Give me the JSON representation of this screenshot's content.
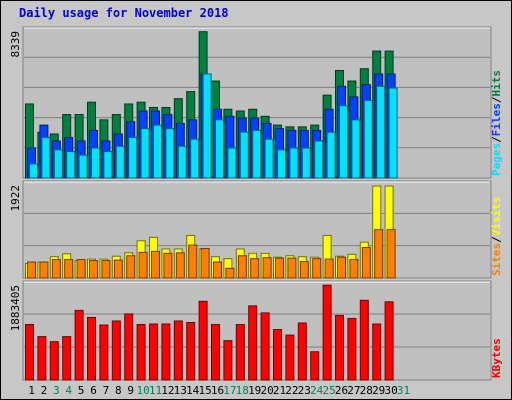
{
  "title": "Daily usage for November 2018",
  "colors": {
    "hits": "#008040",
    "files": "#0040ff",
    "pages": "#00e0ff",
    "visits": "#ffff00",
    "sites": "#ff8000",
    "kbytes": "#ff0000",
    "weekday_label": "#000000",
    "weekend_label": "#00805c",
    "panel_bg": "#c0c0c0",
    "frame_bg": "#c7c7c7"
  },
  "chart_data": [
    {
      "type": "bar",
      "panel": "top",
      "y_axis_label": "8339",
      "ylim": [
        0,
        8339
      ],
      "legend_right": [
        "Pages",
        "/",
        "Files",
        "/",
        "Hits"
      ],
      "categories": [
        "1",
        "2",
        "3",
        "4",
        "5",
        "6",
        "7",
        "8",
        "9",
        "10",
        "11",
        "12",
        "13",
        "14",
        "15",
        "16",
        "17",
        "18",
        "19",
        "20",
        "21",
        "22",
        "23",
        "24",
        "25",
        "26",
        "27",
        "28",
        "29",
        "30",
        "31"
      ],
      "series": [
        {
          "name": "Hits",
          "values": [
            4200,
            2600,
            2500,
            3600,
            3600,
            4300,
            3300,
            3600,
            4200,
            4300,
            4000,
            4000,
            4500,
            4900,
            8300,
            5500,
            3900,
            3800,
            3900,
            3500,
            3000,
            2900,
            2900,
            3000,
            4700,
            6100,
            5500,
            6200,
            7200,
            7200,
            0
          ]
        },
        {
          "name": "Files",
          "values": [
            1700,
            3000,
            2100,
            2300,
            2100,
            2700,
            2100,
            2500,
            3200,
            3800,
            3800,
            3600,
            3100,
            3300,
            5900,
            3900,
            3500,
            3400,
            3400,
            3100,
            2800,
            2700,
            2700,
            2700,
            3900,
            5200,
            4600,
            5300,
            5900,
            5900,
            0
          ]
        },
        {
          "name": "Pages",
          "values": [
            800,
            2300,
            1600,
            1500,
            1300,
            1700,
            1500,
            1800,
            2300,
            2800,
            3000,
            2800,
            1800,
            2200,
            5900,
            3300,
            1700,
            2600,
            2700,
            2200,
            1600,
            1700,
            1700,
            2100,
            2600,
            4100,
            3300,
            4400,
            5200,
            5100,
            0
          ]
        }
      ]
    },
    {
      "type": "bar",
      "panel": "middle",
      "y_axis_label": "1922",
      "ylim": [
        0,
        1922
      ],
      "legend_right": [
        "Sites",
        "/",
        "Visits"
      ],
      "categories": [
        "1",
        "2",
        "3",
        "4",
        "5",
        "6",
        "7",
        "8",
        "9",
        "10",
        "11",
        "12",
        "13",
        "14",
        "15",
        "16",
        "17",
        "18",
        "19",
        "20",
        "21",
        "22",
        "23",
        "24",
        "25",
        "26",
        "27",
        "28",
        "29",
        "30",
        "31"
      ],
      "series": [
        {
          "name": "Visits",
          "values": [
            300,
            330,
            440,
            500,
            360,
            390,
            390,
            450,
            520,
            770,
            840,
            600,
            600,
            880,
            600,
            440,
            400,
            600,
            510,
            510,
            430,
            460,
            440,
            430,
            880,
            450,
            490,
            740,
            1900,
            1900,
            0
          ]
        },
        {
          "name": "Sites",
          "values": [
            330,
            330,
            380,
            380,
            380,
            360,
            360,
            370,
            460,
            530,
            550,
            510,
            520,
            680,
            610,
            330,
            200,
            460,
            400,
            420,
            410,
            410,
            340,
            400,
            390,
            430,
            380,
            630,
            1000,
            1000,
            0
          ]
        }
      ]
    },
    {
      "type": "bar",
      "panel": "bottom",
      "y_axis_label": "1883405",
      "ylim": [
        0,
        1883405
      ],
      "legend_right": [
        "KBytes"
      ],
      "categories": [
        "1",
        "2",
        "3",
        "4",
        "5",
        "6",
        "7",
        "8",
        "9",
        "10",
        "11",
        "12",
        "13",
        "14",
        "15",
        "16",
        "17",
        "18",
        "19",
        "20",
        "21",
        "22",
        "23",
        "24",
        "25",
        "26",
        "27",
        "28",
        "29",
        "30",
        "31"
      ],
      "series": [
        {
          "name": "KBytes",
          "values": [
            1100000,
            860000,
            760000,
            860000,
            1380000,
            1240000,
            1090000,
            1170000,
            1310000,
            1100000,
            1110000,
            1110000,
            1170000,
            1140000,
            1560000,
            1100000,
            780000,
            1100000,
            1470000,
            1330000,
            1000000,
            890000,
            1130000,
            560000,
            1880000,
            1280000,
            1220000,
            1580000,
            1110000,
            1550000,
            0
          ]
        }
      ]
    }
  ],
  "x_labels": [
    {
      "label": "1",
      "weekend": false
    },
    {
      "label": "2",
      "weekend": false
    },
    {
      "label": "3",
      "weekend": true
    },
    {
      "label": "4",
      "weekend": true
    },
    {
      "label": "5",
      "weekend": false
    },
    {
      "label": "6",
      "weekend": false
    },
    {
      "label": "7",
      "weekend": false
    },
    {
      "label": "8",
      "weekend": false
    },
    {
      "label": "9",
      "weekend": false
    },
    {
      "label": "10",
      "weekend": true
    },
    {
      "label": "11",
      "weekend": true
    },
    {
      "label": "12",
      "weekend": false
    },
    {
      "label": "13",
      "weekend": false
    },
    {
      "label": "14",
      "weekend": false
    },
    {
      "label": "15",
      "weekend": false
    },
    {
      "label": "16",
      "weekend": false
    },
    {
      "label": "17",
      "weekend": true
    },
    {
      "label": "18",
      "weekend": true
    },
    {
      "label": "19",
      "weekend": false
    },
    {
      "label": "20",
      "weekend": false
    },
    {
      "label": "21",
      "weekend": false
    },
    {
      "label": "22",
      "weekend": false
    },
    {
      "label": "23",
      "weekend": false
    },
    {
      "label": "24",
      "weekend": true
    },
    {
      "label": "25",
      "weekend": true
    },
    {
      "label": "26",
      "weekend": false
    },
    {
      "label": "27",
      "weekend": false
    },
    {
      "label": "28",
      "weekend": false
    },
    {
      "label": "29",
      "weekend": false
    },
    {
      "label": "30",
      "weekend": false
    },
    {
      "label": "31",
      "weekend": true
    }
  ]
}
